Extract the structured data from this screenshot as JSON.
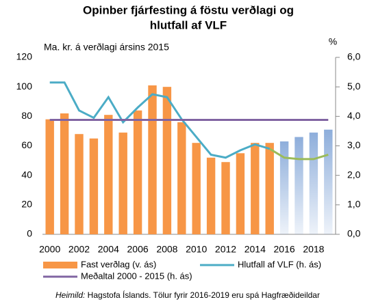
{
  "chart_data": {
    "type": "bar_line",
    "title": [
      "Opinber fjárfesting  á föstu verðlagi og",
      "hlutfall af VLF"
    ],
    "y_label": "Ma. kr. á verðlagi ársins 2015",
    "y2_label": "%",
    "categories": [
      "2000",
      null,
      "2002",
      null,
      "2004",
      null,
      "2006",
      null,
      "2008",
      null,
      "2010",
      null,
      "2012",
      null,
      "2014",
      null,
      "2016",
      null,
      "2018",
      null
    ],
    "ylim": [
      0,
      120
    ],
    "yticks": [
      0,
      20,
      40,
      60,
      80,
      100,
      120
    ],
    "y2lim": [
      0,
      6
    ],
    "y2ticks": [
      {
        "value": 0,
        "label": "0,0"
      },
      {
        "value": 1,
        "label": "1,0"
      },
      {
        "value": 2,
        "label": "2,0"
      },
      {
        "value": 3,
        "label": "3,0"
      },
      {
        "value": 4,
        "label": "4,0"
      },
      {
        "value": 5,
        "label": "5,0"
      },
      {
        "value": 6,
        "label": "6,0"
      }
    ],
    "series": [
      {
        "name": "Fast verðlag (v. ás)",
        "kind": "bar",
        "color": "#f79646",
        "values": [
          78,
          82,
          68,
          65,
          81,
          69,
          84,
          101,
          100,
          76,
          62,
          52,
          49,
          55,
          62,
          62,
          null,
          null,
          null,
          null
        ]
      },
      {
        "kind": "bar",
        "color": "#8eaedb",
        "values": [
          null,
          null,
          null,
          null,
          null,
          null,
          null,
          null,
          null,
          null,
          null,
          null,
          null,
          null,
          null,
          null,
          63,
          66,
          69,
          71
        ]
      },
      {
        "name": "Hlutfall af VLF (h. ás)",
        "kind": "line",
        "axis": "y2",
        "color": "#4bacc6",
        "values": [
          5.15,
          5.15,
          4.2,
          3.95,
          4.65,
          3.8,
          4.3,
          4.75,
          4.65,
          3.9,
          3.3,
          2.7,
          2.6,
          2.85,
          3.05,
          2.9,
          null,
          null,
          null,
          null
        ]
      },
      {
        "kind": "line",
        "axis": "y2",
        "color": "#9bbb59",
        "values": [
          null,
          null,
          null,
          null,
          null,
          null,
          null,
          null,
          null,
          null,
          null,
          null,
          null,
          null,
          null,
          2.9,
          2.6,
          2.55,
          2.55,
          2.7
        ]
      },
      {
        "name": "Meðaltal 2000 - 2015 (h. ás)",
        "kind": "line",
        "axis": "y2",
        "color": "#8064a2",
        "values": [
          3.88,
          3.88,
          3.88,
          3.88,
          3.88,
          3.88,
          3.88,
          3.88,
          3.88,
          3.88,
          3.88,
          3.88,
          3.88,
          3.88,
          3.88,
          3.88,
          3.88,
          3.88,
          3.88,
          3.88
        ]
      }
    ],
    "source": {
      "label": "Heimild:",
      "text": " Hagstofa Íslands. Tölur fyrir 2016-2019 eru spá Hagfræðideildar"
    }
  }
}
